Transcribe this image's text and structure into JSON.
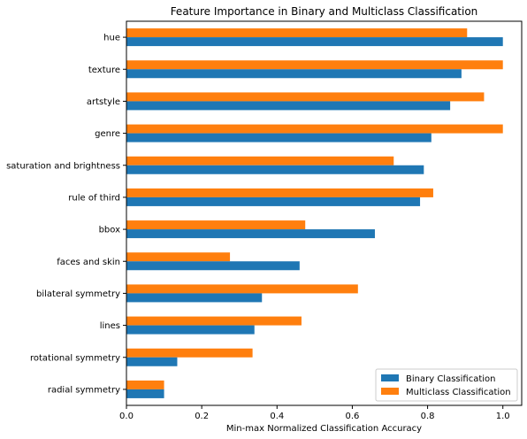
{
  "chart_data": {
    "type": "bar",
    "orientation": "horizontal",
    "title": "Feature Importance in Binary and Multiclass Classification",
    "xlabel": "Min-max Normalized Classification Accuracy",
    "ylabel": "",
    "xlim": [
      0,
      1.05
    ],
    "xticks": [
      "0.0",
      "0.2",
      "0.4",
      "0.6",
      "0.8",
      "1.0"
    ],
    "categories": [
      "hue",
      "texture",
      "artstyle",
      "genre",
      "saturation and brightness",
      "rule of third",
      "bbox",
      "faces and skin",
      "bilateral symmetry",
      "lines",
      "rotational symmetry",
      "radial symmetry"
    ],
    "series": [
      {
        "name": "Binary Classification",
        "color": "#1f77b4",
        "values": [
          1.0,
          0.89,
          0.86,
          0.81,
          0.79,
          0.78,
          0.66,
          0.46,
          0.36,
          0.34,
          0.135,
          0.1
        ]
      },
      {
        "name": "Multiclass Classification",
        "color": "#ff7f0e",
        "values": [
          0.905,
          1.0,
          0.95,
          1.0,
          0.71,
          0.815,
          0.475,
          0.275,
          0.615,
          0.465,
          0.335,
          0.1
        ]
      }
    ],
    "grid": false,
    "legend_position": "lower-right"
  }
}
